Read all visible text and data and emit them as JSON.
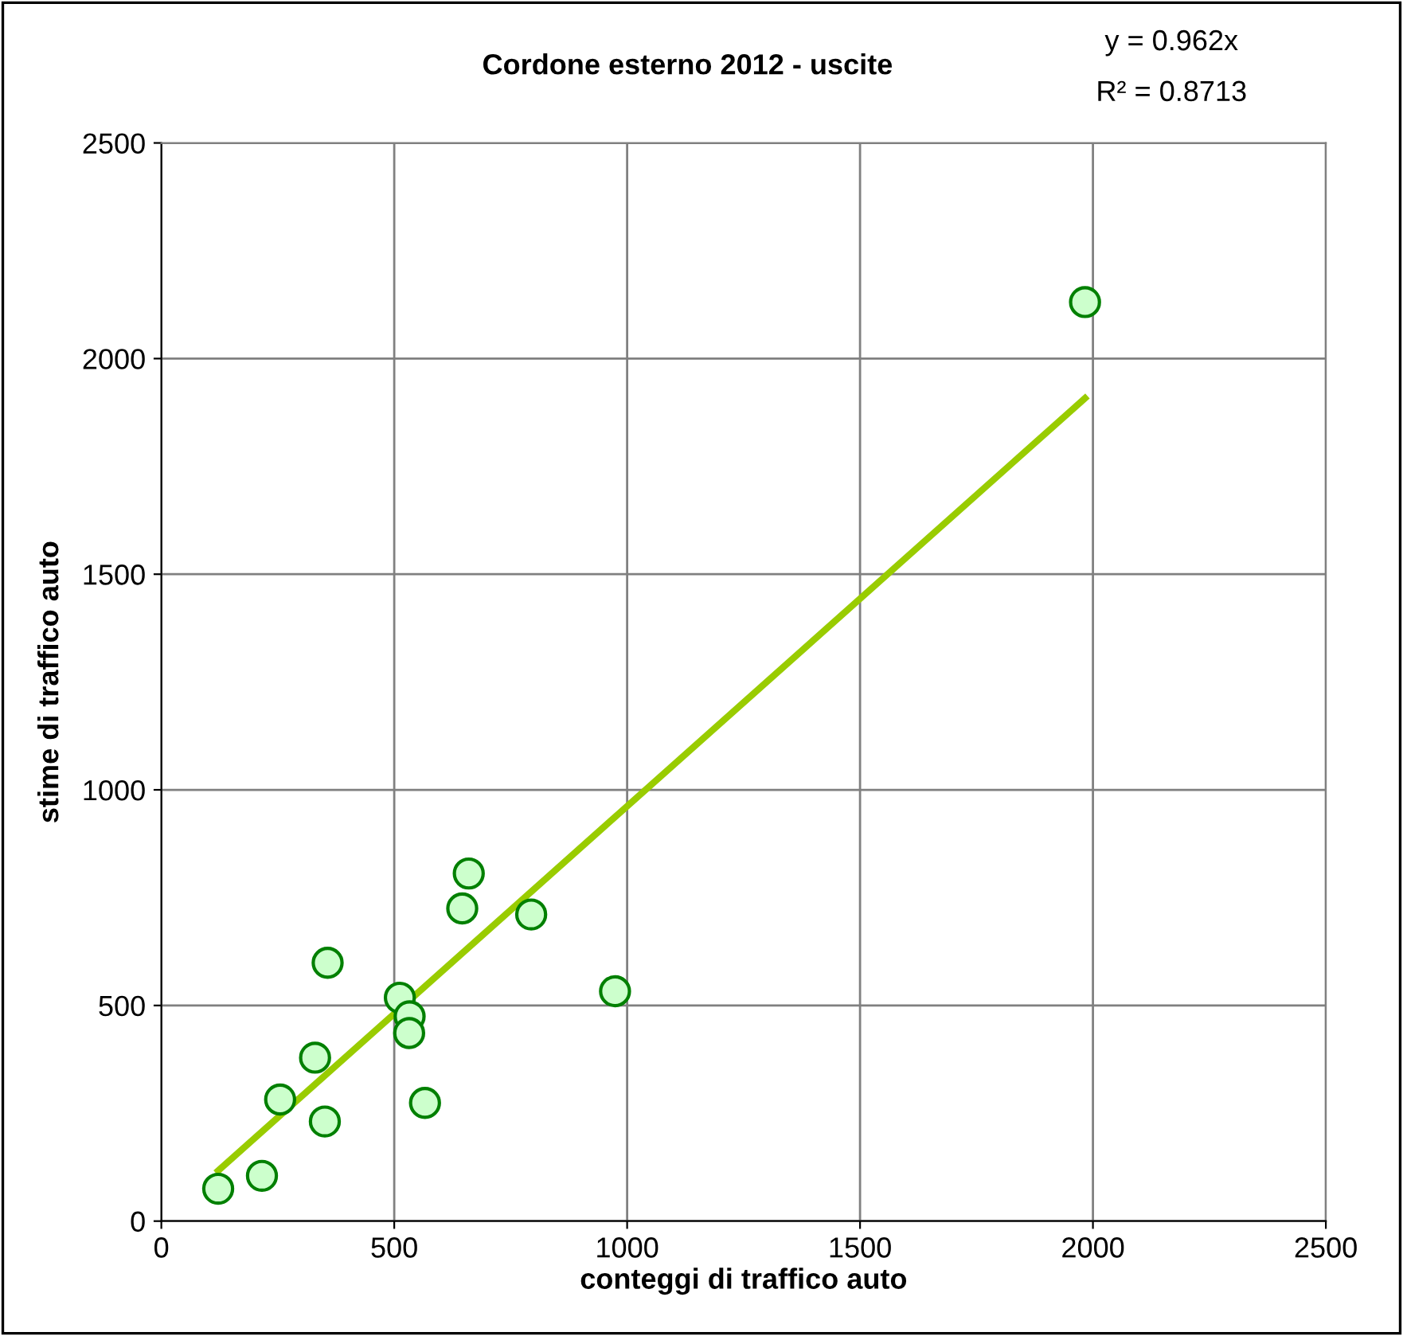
{
  "chart_data": {
    "type": "scatter",
    "title": "Cordone esterno 2012 - uscite",
    "xlabel": "conteggi di traffico auto",
    "ylabel": "stime di traffico auto",
    "annotations": [
      "y = 0.962x",
      "R² = 0.8713"
    ],
    "xlim": [
      0,
      2500
    ],
    "ylim": [
      0,
      2500
    ],
    "xticks": [
      0,
      500,
      1000,
      1500,
      2000,
      2500
    ],
    "yticks": [
      0,
      500,
      1000,
      1500,
      2000,
      2500
    ],
    "grid": true,
    "legend": false,
    "series": [
      {
        "marker": "circle",
        "color": "#ccffcc",
        "x": [
          122,
          216,
          255,
          330,
          351,
          357,
          512,
          533,
          532,
          566,
          646,
          660,
          794,
          974,
          1983
        ],
        "values": [
          75,
          105,
          282,
          379,
          231,
          599,
          518,
          475,
          436,
          274,
          725,
          806,
          711,
          533,
          2131
        ]
      },
      {
        "type": "line",
        "color": "#99cc00",
        "line_style": "solid",
        "x": [
          122,
          1983
        ],
        "values": [
          117,
          1908
        ]
      }
    ]
  }
}
